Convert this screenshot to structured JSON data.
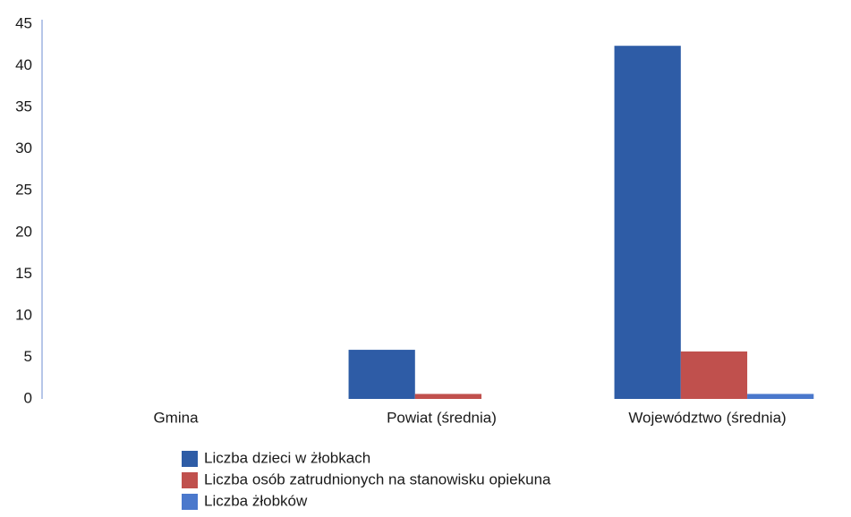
{
  "chart_data": {
    "type": "bar",
    "categories": [
      "Gmina",
      "Powiat (średnia)",
      "Województwo (średnia)"
    ],
    "series": [
      {
        "name": "Liczba dzieci w żłobkach",
        "color": "#2e5ca6",
        "values": [
          0,
          5.9,
          42.4
        ]
      },
      {
        "name": "Liczba osób zatrudnionych na stanowisku opiekuna",
        "color": "#c0504d",
        "values": [
          0,
          0.6,
          5.7
        ]
      },
      {
        "name": "Liczba żłobków",
        "color": "#4a78cc",
        "values": [
          0,
          0,
          0.6
        ]
      }
    ],
    "ylim": [
      0,
      45
    ],
    "yticks": [
      0,
      5,
      10,
      15,
      20,
      25,
      30,
      35,
      40,
      45
    ],
    "grid": false,
    "legend": "bottom"
  }
}
